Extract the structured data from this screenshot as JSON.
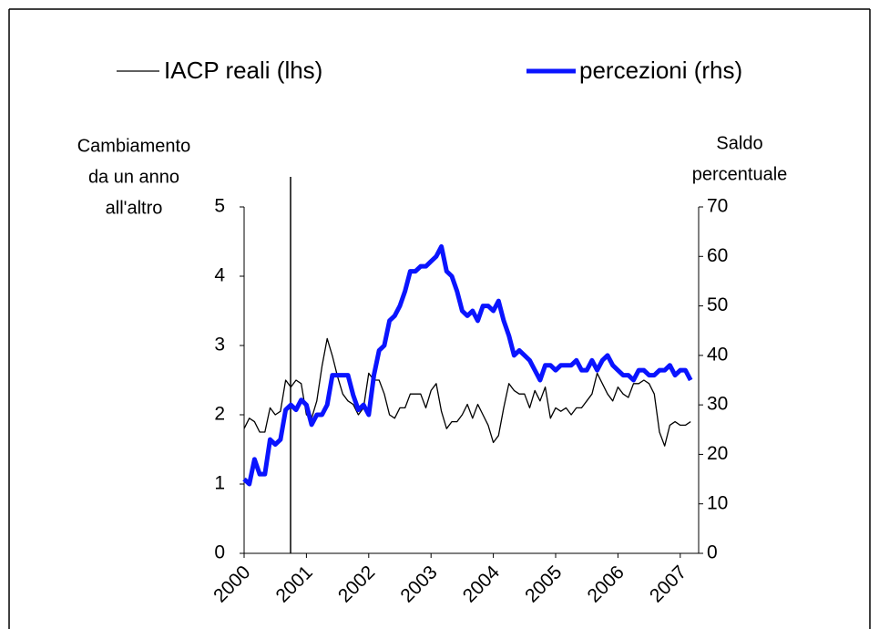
{
  "chart_data": {
    "type": "line",
    "categories": [
      "2000",
      null,
      null,
      null,
      null,
      null,
      null,
      null,
      null,
      null,
      null,
      null,
      "2001",
      null,
      null,
      null,
      null,
      null,
      null,
      null,
      null,
      null,
      null,
      null,
      "2002",
      null,
      null,
      null,
      null,
      null,
      null,
      null,
      null,
      null,
      null,
      null,
      "2003",
      null,
      null,
      null,
      null,
      null,
      null,
      null,
      null,
      null,
      null,
      null,
      "2004",
      null,
      null,
      null,
      null,
      null,
      null,
      null,
      null,
      null,
      null,
      null,
      "2005",
      null,
      null,
      null,
      null,
      null,
      null,
      null,
      null,
      null,
      null,
      null,
      "2006",
      null,
      null,
      null,
      null,
      null,
      null,
      null,
      null,
      null,
      null,
      null,
      "2007",
      null,
      null
    ],
    "ylabel": [
      "Cambiamento",
      "da un anno",
      "all'altro"
    ],
    "y2label": [
      "Saldo",
      "percentuale"
    ],
    "ylim": [
      0,
      5
    ],
    "yticks": [
      0,
      1,
      2,
      3,
      4,
      5
    ],
    "y2lim": [
      0,
      70
    ],
    "y2ticks": [
      0,
      10,
      20,
      30,
      40,
      50,
      60,
      70
    ],
    "series": [
      {
        "name": "IACP reali (lhs)",
        "color": "#000000",
        "width": 1.3,
        "values": [
          1.8,
          1.95,
          1.9,
          1.75,
          1.75,
          2.1,
          2.0,
          2.05,
          2.5,
          2.4,
          2.5,
          2.45,
          2.0,
          1.95,
          2.2,
          2.7,
          3.1,
          2.85,
          2.55,
          2.3,
          2.2,
          2.15,
          2.0,
          2.1,
          2.6,
          2.5,
          2.5,
          2.3,
          2.0,
          1.95,
          2.1,
          2.1,
          2.3,
          2.3,
          2.3,
          2.1,
          2.35,
          2.45,
          2.05,
          1.8,
          1.9,
          1.9,
          2.0,
          2.15,
          1.95,
          2.15,
          2.0,
          1.85,
          1.6,
          1.7,
          2.1,
          2.45,
          2.35,
          2.3,
          2.3,
          2.1,
          2.35,
          2.2,
          2.4,
          1.95,
          2.1,
          2.05,
          2.1,
          2.0,
          2.1,
          2.1,
          2.2,
          2.3,
          2.6,
          2.45,
          2.3,
          2.2,
          2.4,
          2.3,
          2.25,
          2.45,
          2.45,
          2.5,
          2.45,
          2.3,
          1.75,
          1.55,
          1.85,
          1.9,
          1.85,
          1.85,
          1.9
        ]
      },
      {
        "name": "percezioni (rhs)",
        "color": "#0a14ff",
        "width": 5,
        "axis": "y2",
        "values": [
          15,
          14,
          19,
          16,
          16,
          23,
          22,
          23,
          29,
          30,
          29,
          31,
          30,
          26,
          28,
          28,
          30,
          36,
          36,
          36,
          36,
          32,
          29,
          30,
          28,
          36,
          41,
          42,
          47,
          48,
          50,
          53,
          57,
          57,
          58,
          58,
          59,
          60,
          62,
          57,
          56,
          53,
          49,
          48,
          49,
          47,
          50,
          50,
          49,
          51,
          47,
          44,
          40,
          41,
          40,
          39,
          37,
          35,
          38,
          38,
          37,
          38,
          38,
          38,
          39,
          37,
          37,
          39,
          37,
          39,
          40,
          38,
          37,
          36,
          36,
          35,
          37,
          37,
          36,
          36,
          37,
          37,
          38,
          36,
          37,
          37,
          35
        ]
      }
    ]
  }
}
